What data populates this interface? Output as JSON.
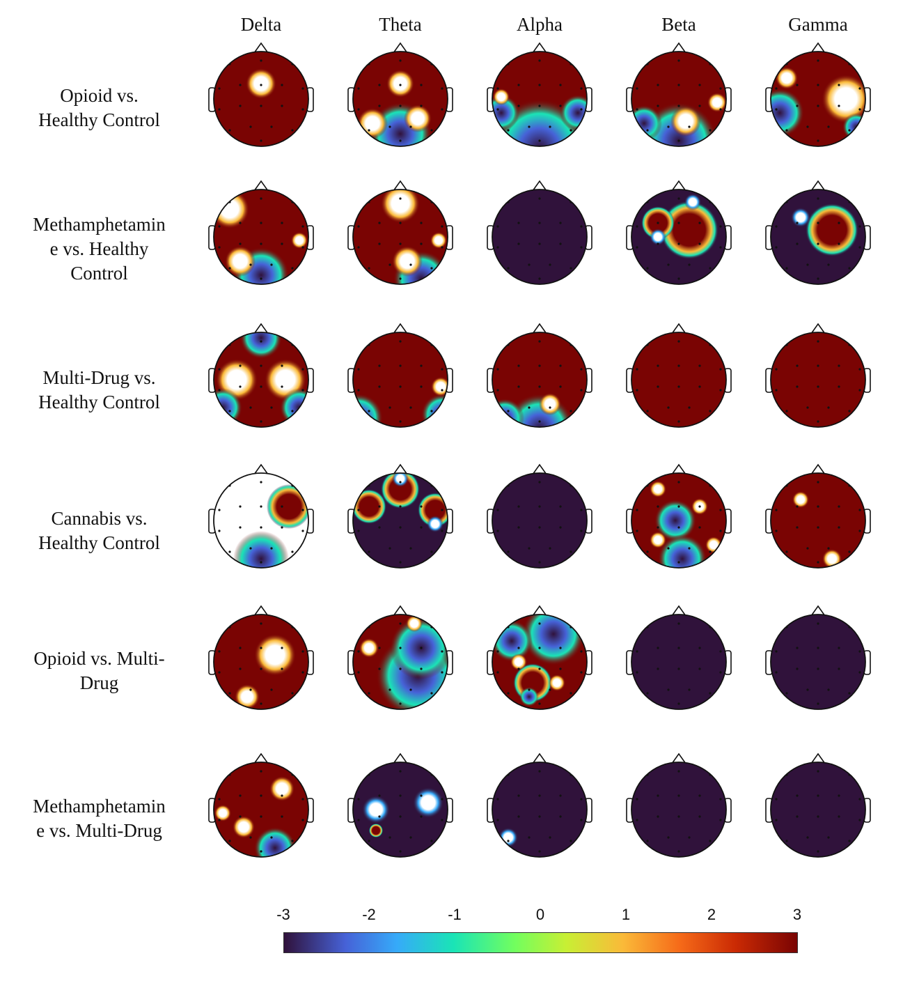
{
  "columns": [
    "Delta",
    "Theta",
    "Alpha",
    "Beta",
    "Gamma"
  ],
  "rows": [
    {
      "label_lines": [
        "Opioid vs.",
        "Healthy Control"
      ]
    },
    {
      "label_lines": [
        "Methamphetamin",
        "e vs. Healthy",
        "Control"
      ]
    },
    {
      "label_lines": [
        "Multi-Drug vs.",
        "Healthy Control"
      ]
    },
    {
      "label_lines": [
        "Cannabis vs.",
        "Healthy Control"
      ]
    },
    {
      "label_lines": [
        "Opioid vs. Multi-",
        "Drug"
      ]
    },
    {
      "label_lines": [
        "Methamphetamin",
        "e vs. Multi-Drug"
      ]
    }
  ],
  "colorbar": {
    "ticks": [
      "-3",
      "-2",
      "-1",
      "0",
      "1",
      "2",
      "3"
    ],
    "range": [
      -3,
      3
    ],
    "low_color": "#30123b",
    "high_color": "#7a0403"
  },
  "maps": [
    [
      {
        "base": "red"
      },
      {
        "base": "red"
      },
      {
        "base": "red"
      },
      {
        "base": "red"
      },
      {
        "base": "red"
      }
    ],
    [
      {
        "base": "red"
      },
      {
        "base": "red"
      },
      {
        "base": "dark"
      },
      {
        "base": "dark"
      },
      {
        "base": "dark"
      }
    ],
    [
      {
        "base": "red"
      },
      {
        "base": "red"
      },
      {
        "base": "red"
      },
      {
        "base": "red"
      },
      {
        "base": "red"
      }
    ],
    [
      {
        "base": "white"
      },
      {
        "base": "dark"
      },
      {
        "base": "dark"
      },
      {
        "base": "red"
      },
      {
        "base": "red"
      }
    ],
    [
      {
        "base": "red"
      },
      {
        "base": "red"
      },
      {
        "base": "red"
      },
      {
        "base": "dark"
      },
      {
        "base": "dark"
      }
    ],
    [
      {
        "base": "red"
      },
      {
        "base": "dark"
      },
      {
        "base": "dark"
      },
      {
        "base": "dark"
      },
      {
        "base": "dark"
      }
    ]
  ]
}
